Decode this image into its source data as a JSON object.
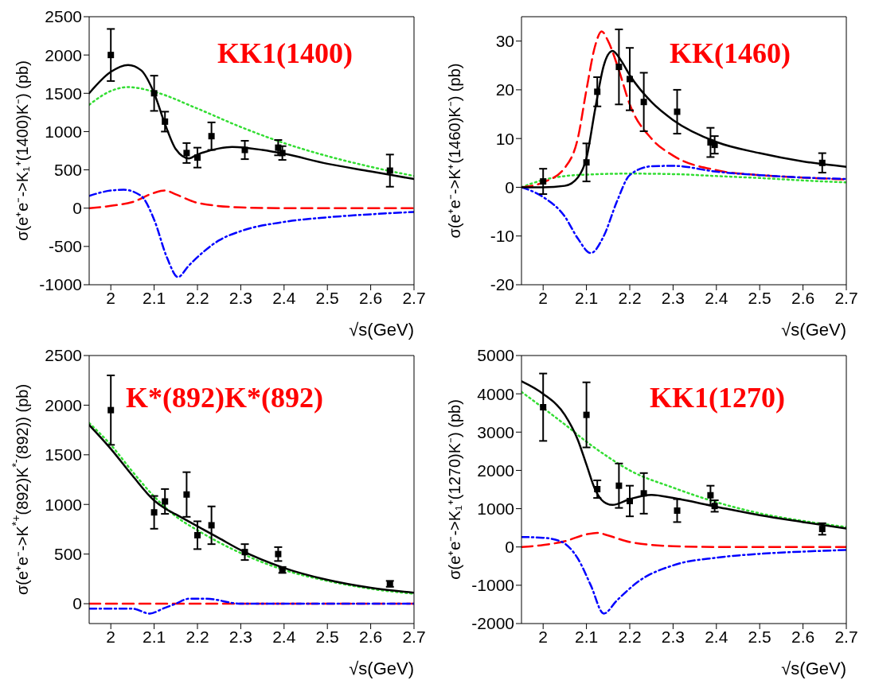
{
  "chart_data": [
    {
      "type": "scatter",
      "xlabel": "√s(GeV)",
      "ylabel": "σ(e⁺e⁻->K₁⁺(1400)K⁻) (pb)",
      "annotations": [
        "KK1(1400)"
      ],
      "xlim": [
        1.95,
        2.7
      ],
      "xticks": [
        2,
        2.1,
        2.2,
        2.3,
        2.4,
        2.5,
        2.6,
        2.7
      ],
      "ylim": [
        -1000,
        2500
      ],
      "yticks": [
        -1000,
        -500,
        0,
        500,
        1000,
        1500,
        2000,
        2500
      ],
      "series": [
        {
          "type": "line",
          "color": "#33dd33",
          "line_style": "dotted",
          "marker": "none",
          "x": [
            1.95,
            2.0,
            2.04,
            2.1,
            2.2,
            2.3,
            2.4,
            2.5,
            2.6,
            2.7
          ],
          "values": [
            1350,
            1530,
            1580,
            1520,
            1300,
            1060,
            850,
            680,
            540,
            420
          ]
        },
        {
          "type": "line",
          "color": "#ff0000",
          "line_style": "dashed",
          "marker": "none",
          "x": [
            1.95,
            2.0,
            2.05,
            2.1,
            2.125,
            2.15,
            2.2,
            2.3,
            2.4,
            2.7
          ],
          "values": [
            0,
            30,
            80,
            200,
            230,
            180,
            70,
            10,
            0,
            0
          ]
        },
        {
          "type": "line",
          "color": "#0000ff",
          "line_style": "dashdot",
          "marker": "none",
          "x": [
            1.95,
            2.0,
            2.03,
            2.07,
            2.1,
            2.13,
            2.155,
            2.18,
            2.25,
            2.3,
            2.4,
            2.5,
            2.6,
            2.7
          ],
          "values": [
            160,
            230,
            240,
            160,
            -150,
            -650,
            -900,
            -750,
            -420,
            -300,
            -180,
            -120,
            -80,
            -50
          ]
        },
        {
          "type": "line",
          "color": "#000000",
          "line_style": "solid",
          "marker": "none",
          "x": [
            1.95,
            2.0,
            2.04,
            2.07,
            2.1,
            2.125,
            2.15,
            2.18,
            2.2,
            2.25,
            2.28,
            2.35,
            2.4,
            2.5,
            2.6,
            2.7
          ],
          "values": [
            1500,
            1780,
            1870,
            1800,
            1500,
            1100,
            770,
            650,
            700,
            780,
            800,
            760,
            710,
            580,
            480,
            380
          ]
        },
        {
          "color": "#000000",
          "marker": "square",
          "x": [
            2.0,
            2.1,
            2.125,
            2.175,
            2.2,
            2.2324,
            2.3094,
            2.3864,
            2.396,
            2.6444
          ],
          "values": [
            2000,
            1500,
            1130,
            720,
            660,
            940,
            760,
            790,
            720,
            490
          ],
          "errors": [
            340,
            230,
            130,
            130,
            130,
            180,
            120,
            100,
            90,
            210
          ]
        }
      ]
    },
    {
      "type": "scatter",
      "xlabel": "√s(GeV)",
      "ylabel": "σ(e⁺e⁻->K⁺(1460)K⁻) (pb)",
      "annotations": [
        "KK(1460)"
      ],
      "xlim": [
        1.95,
        2.7
      ],
      "xticks": [
        2,
        2.1,
        2.2,
        2.3,
        2.4,
        2.5,
        2.6,
        2.7
      ],
      "ylim": [
        -20,
        35
      ],
      "yticks": [
        -20,
        -10,
        0,
        10,
        20,
        30
      ],
      "series": [
        {
          "type": "line",
          "color": "#33dd33",
          "line_style": "dotted",
          "marker": "none",
          "x": [
            1.95,
            2.0,
            2.05,
            2.1,
            2.2,
            2.3,
            2.4,
            2.5,
            2.6,
            2.7
          ],
          "values": [
            0,
            1.5,
            2.3,
            2.6,
            2.8,
            2.7,
            2.3,
            1.9,
            1.4,
            1.0
          ]
        },
        {
          "type": "line",
          "color": "#ff0000",
          "line_style": "dashed",
          "marker": "none",
          "x": [
            1.95,
            2.0,
            2.05,
            2.08,
            2.1,
            2.12,
            2.135,
            2.15,
            2.175,
            2.2,
            2.25,
            2.3,
            2.4,
            2.5,
            2.6,
            2.7
          ],
          "values": [
            0,
            1,
            4,
            10,
            20,
            29,
            32,
            30,
            24,
            17,
            10,
            6.5,
            3.5,
            2.5,
            2,
            1.6
          ]
        },
        {
          "type": "line",
          "color": "#0000ff",
          "line_style": "dashdot",
          "marker": "none",
          "x": [
            1.95,
            2.0,
            2.05,
            2.08,
            2.11,
            2.14,
            2.17,
            2.2,
            2.25,
            2.3,
            2.4,
            2.5,
            2.6,
            2.7
          ],
          "values": [
            0,
            -2,
            -6,
            -10.5,
            -13.5,
            -10,
            -3,
            2.5,
            4.3,
            4.4,
            3.2,
            2.5,
            2,
            1.7
          ]
        },
        {
          "type": "line",
          "color": "#000000",
          "line_style": "solid",
          "marker": "none",
          "x": [
            1.95,
            2.0,
            2.05,
            2.08,
            2.1,
            2.12,
            2.14,
            2.16,
            2.18,
            2.2,
            2.25,
            2.3,
            2.4,
            2.5,
            2.6,
            2.7
          ],
          "values": [
            0,
            0,
            0.3,
            2,
            6,
            16,
            25,
            28,
            26,
            23,
            17.5,
            13.8,
            9.3,
            7,
            5.3,
            4.2
          ]
        },
        {
          "color": "#000000",
          "marker": "square",
          "x": [
            2.0,
            2.1,
            2.125,
            2.175,
            2.2,
            2.2324,
            2.3094,
            2.3864,
            2.396,
            2.6444
          ],
          "values": [
            1.2,
            5.1,
            19.6,
            24.7,
            22.2,
            17.5,
            15.5,
            9.2,
            8.7,
            5.0
          ],
          "errors": [
            2.6,
            3.9,
            3,
            7.7,
            6.4,
            6,
            4.5,
            3,
            1.8,
            2
          ]
        }
      ]
    },
    {
      "type": "scatter",
      "xlabel": "√s(GeV)",
      "ylabel": "σ(e⁺e⁻->K$^{*+}$(892)K$^{*-}$(892)) (pb)",
      "annotations": [
        "K*(892)K*(892)"
      ],
      "xlim": [
        1.95,
        2.7
      ],
      "xticks": [
        2,
        2.1,
        2.2,
        2.3,
        2.4,
        2.5,
        2.6,
        2.7
      ],
      "ylim": [
        -200,
        2500
      ],
      "yticks": [
        0,
        500,
        1000,
        1500,
        2000,
        2500
      ],
      "series": [
        {
          "type": "line",
          "color": "#33dd33",
          "line_style": "dotted",
          "marker": "none",
          "x": [
            1.95,
            2.0,
            2.05,
            2.1,
            2.15,
            2.2,
            2.3,
            2.4,
            2.5,
            2.6,
            2.7
          ],
          "values": [
            1820,
            1600,
            1330,
            1080,
            880,
            740,
            510,
            340,
            230,
            150,
            100
          ]
        },
        {
          "type": "line",
          "color": "#ff0000",
          "line_style": "dashed",
          "marker": "none",
          "x": [
            1.95,
            2.3,
            2.7
          ],
          "values": [
            0,
            0,
            0
          ]
        },
        {
          "type": "line",
          "color": "#0000ff",
          "line_style": "dashdot",
          "marker": "none",
          "x": [
            1.95,
            2.0,
            2.05,
            2.09,
            2.12,
            2.15,
            2.18,
            2.22,
            2.3,
            2.4,
            2.5,
            2.7
          ],
          "values": [
            -50,
            -50,
            -50,
            -100,
            -50,
            0,
            50,
            50,
            0,
            0,
            0,
            0
          ]
        },
        {
          "type": "line",
          "color": "#000000",
          "line_style": "solid",
          "marker": "none",
          "x": [
            1.95,
            2.0,
            2.05,
            2.1,
            2.125,
            2.15,
            2.2,
            2.25,
            2.3,
            2.4,
            2.5,
            2.6,
            2.7
          ],
          "values": [
            1800,
            1560,
            1290,
            1040,
            960,
            900,
            780,
            660,
            540,
            360,
            240,
            160,
            110
          ]
        },
        {
          "color": "#000000",
          "marker": "square",
          "x": [
            2.0,
            2.1,
            2.125,
            2.175,
            2.2,
            2.2324,
            2.3094,
            2.3864,
            2.396,
            2.6444
          ],
          "values": [
            1950,
            920,
            1030,
            1100,
            690,
            790,
            520,
            500,
            340,
            200
          ],
          "errors": [
            350,
            165,
            125,
            225,
            140,
            190,
            80,
            70,
            30,
            30
          ]
        }
      ]
    },
    {
      "type": "scatter",
      "xlabel": "√s(GeV)",
      "ylabel": "σ(e⁺e⁻->K₁⁺(1270)K⁻) (pb)",
      "annotations": [
        "KK1(1270)"
      ],
      "xlim": [
        1.95,
        2.7
      ],
      "xticks": [
        2,
        2.1,
        2.2,
        2.3,
        2.4,
        2.5,
        2.6,
        2.7
      ],
      "ylim": [
        -2000,
        5000
      ],
      "yticks": [
        -2000,
        -1000,
        0,
        1000,
        2000,
        3000,
        4000,
        5000
      ],
      "series": [
        {
          "type": "line",
          "color": "#33dd33",
          "line_style": "dotted",
          "marker": "none",
          "x": [
            1.95,
            2.0,
            2.05,
            2.1,
            2.15,
            2.2,
            2.3,
            2.4,
            2.5,
            2.6,
            2.7
          ],
          "values": [
            4050,
            3630,
            3200,
            2750,
            2350,
            2000,
            1550,
            1170,
            880,
            680,
            520
          ]
        },
        {
          "type": "line",
          "color": "#ff0000",
          "line_style": "dashed",
          "marker": "none",
          "x": [
            1.95,
            2.0,
            2.05,
            2.1,
            2.125,
            2.15,
            2.2,
            2.3,
            2.4,
            2.7
          ],
          "values": [
            0,
            50,
            150,
            330,
            370,
            300,
            130,
            20,
            0,
            0
          ]
        },
        {
          "type": "line",
          "color": "#0000ff",
          "line_style": "dashdot",
          "marker": "none",
          "x": [
            1.95,
            2.0,
            2.04,
            2.08,
            2.11,
            2.14,
            2.17,
            2.22,
            2.3,
            2.4,
            2.5,
            2.6,
            2.7
          ],
          "values": [
            260,
            240,
            150,
            -300,
            -1000,
            -1740,
            -1400,
            -900,
            -480,
            -280,
            -180,
            -120,
            -80
          ]
        },
        {
          "type": "line",
          "color": "#000000",
          "line_style": "solid",
          "marker": "none",
          "x": [
            1.95,
            2.0,
            2.05,
            2.08,
            2.1,
            2.12,
            2.14,
            2.16,
            2.2,
            2.25,
            2.3,
            2.4,
            2.5,
            2.6,
            2.7
          ],
          "values": [
            4330,
            4000,
            3450,
            2800,
            2150,
            1500,
            1180,
            1100,
            1250,
            1360,
            1280,
            1050,
            830,
            650,
            480
          ]
        },
        {
          "color": "#000000",
          "marker": "square",
          "x": [
            2.0,
            2.1,
            2.125,
            2.175,
            2.2,
            2.2324,
            2.3094,
            2.3864,
            2.396,
            2.6444
          ],
          "values": [
            3650,
            3450,
            1510,
            1600,
            1200,
            1400,
            950,
            1350,
            1070,
            470
          ],
          "errors": [
            880,
            850,
            230,
            580,
            400,
            530,
            300,
            250,
            150,
            150
          ]
        }
      ]
    }
  ]
}
